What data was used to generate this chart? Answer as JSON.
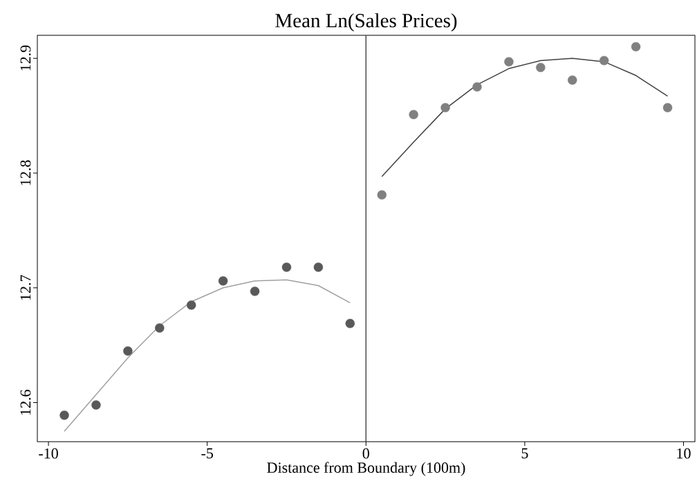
{
  "chart_data": {
    "type": "scatter",
    "title": "Mean Ln(Sales Prices)",
    "xlabel": "Distance from Boundary (100m)",
    "xlim": [
      -10.35,
      10.36
    ],
    "ylim": [
      12.566,
      12.92
    ],
    "xticks": [
      -10,
      -5,
      0,
      5,
      10
    ],
    "yticks": [
      12.6,
      12.7,
      12.8,
      12.9
    ],
    "marker": "circle",
    "series": [
      {
        "color": "#595959",
        "x": [
          -9.5,
          -8.5,
          -7.5,
          -6.5,
          -5.5,
          -4.5,
          -3.5,
          -2.5,
          -1.5,
          -0.5
        ],
        "values": [
          12.589,
          12.598,
          12.645,
          12.665,
          12.685,
          12.706,
          12.697,
          12.718,
          12.718,
          12.669
        ]
      },
      {
        "type": "line",
        "marker": "none",
        "color": "#a0a0a0",
        "x": [
          -9.5,
          -8.5,
          -7.5,
          -6.5,
          -5.5,
          -4.5,
          -3.5,
          -2.5,
          -1.5,
          -0.5
        ],
        "values": [
          12.575,
          12.607,
          12.639,
          12.667,
          12.688,
          12.7,
          12.706,
          12.707,
          12.702,
          12.687
        ]
      },
      {
        "color": "#808080",
        "x": [
          0.5,
          1.5,
          2.5,
          3.5,
          4.5,
          5.5,
          6.5,
          7.5,
          8.5,
          9.5
        ],
        "values": [
          12.781,
          12.851,
          12.857,
          12.875,
          12.897,
          12.892,
          12.881,
          12.898,
          12.91,
          12.857
        ]
      },
      {
        "type": "line",
        "marker": "none",
        "color": "#404040",
        "x": [
          0.5,
          1.5,
          2.5,
          3.5,
          4.5,
          5.5,
          6.5,
          7.5,
          8.5,
          9.5
        ],
        "values": [
          12.797,
          12.827,
          12.856,
          12.877,
          12.891,
          12.898,
          12.9,
          12.897,
          12.885,
          12.867
        ]
      }
    ],
    "ref_lines": [
      {
        "axis": "x",
        "value": 0,
        "color": "#404040"
      }
    ]
  }
}
